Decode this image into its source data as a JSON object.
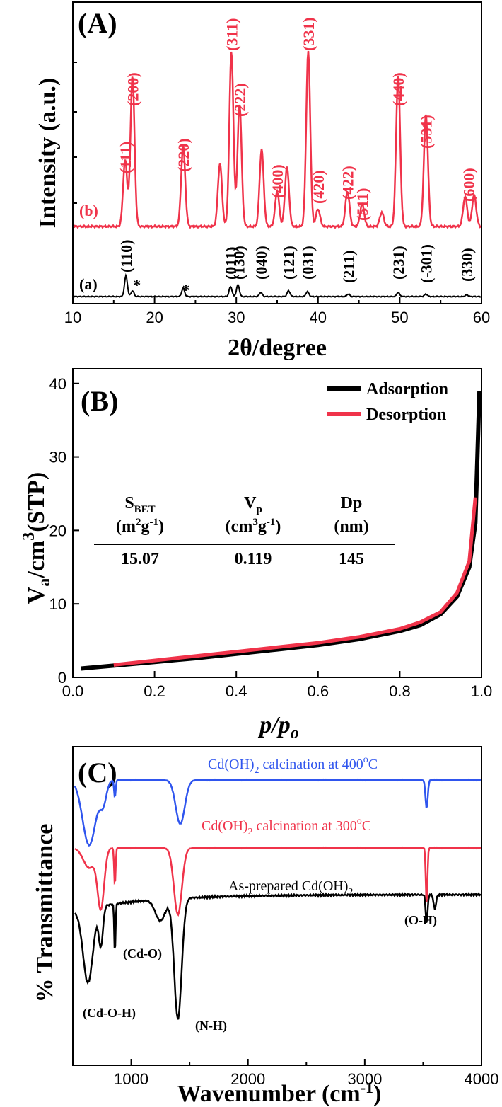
{
  "colors": {
    "red": "#f0334a",
    "black": "#000000",
    "blue": "#2f55ee"
  },
  "chart_data": [
    {
      "type": "line",
      "panel_label": "(A)",
      "xlabel": "2θ/degree",
      "ylabel": "Intensity (a.u.)",
      "xlim": [
        10,
        60
      ],
      "xticks": [
        "10",
        "20",
        "30",
        "40",
        "50",
        "60"
      ],
      "series": [
        {
          "name": "(b)",
          "color": "#f0334a",
          "peaks": [
            [
              16.4,
              0.38
            ],
            [
              17.3,
              0.86
            ],
            [
              23.5,
              0.46
            ],
            [
              28.0,
              0.36
            ],
            [
              29.4,
              1.0
            ],
            [
              30.4,
              0.7
            ],
            [
              33.1,
              0.44
            ],
            [
              35.0,
              0.2
            ],
            [
              36.2,
              0.34
            ],
            [
              38.8,
              1.0
            ],
            [
              40.0,
              0.1
            ],
            [
              43.6,
              0.2
            ],
            [
              45.4,
              0.13
            ],
            [
              47.8,
              0.08
            ],
            [
              49.8,
              0.86
            ],
            [
              53.2,
              0.64
            ],
            [
              58.0,
              0.17
            ],
            [
              59.1,
              0.18
            ]
          ],
          "hkl": [
            {
              "label": "(111)",
              "x": 16.4
            },
            {
              "label": "(200)",
              "x": 17.3
            },
            {
              "label": "(220)",
              "x": 23.5
            },
            {
              "label": "(311)",
              "x": 29.4
            },
            {
              "label": "(222)",
              "x": 30.4
            },
            {
              "label": "(400)",
              "x": 35.0
            },
            {
              "label": "(331)",
              "x": 38.8
            },
            {
              "label": "(420)",
              "x": 40.0
            },
            {
              "label": "(422)",
              "x": 43.6
            },
            {
              "label": "(511)",
              "x": 45.4
            },
            {
              "label": "(440)",
              "x": 49.8
            },
            {
              "label": "(531)",
              "x": 53.2
            },
            {
              "label": "(600)",
              "x": 58.4
            }
          ]
        },
        {
          "name": "(a)",
          "color": "#000000",
          "peaks": [
            [
              16.5,
              0.25
            ],
            [
              17.3,
              0.07
            ],
            [
              23.5,
              0.1
            ],
            [
              29.3,
              0.12
            ],
            [
              30.2,
              0.14
            ],
            [
              33.0,
              0.05
            ],
            [
              36.4,
              0.07
            ],
            [
              38.7,
              0.06
            ],
            [
              43.7,
              0.03
            ],
            [
              49.8,
              0.05
            ],
            [
              53.2,
              0.03
            ],
            [
              58.2,
              0.02
            ]
          ],
          "hkl": [
            {
              "label": "(110)",
              "x": 16.5
            },
            {
              "label": "(011)",
              "x": 29.3
            },
            {
              "label": "(130)",
              "x": 30.3
            },
            {
              "label": "(040)",
              "x": 33.0
            },
            {
              "label": "(121)",
              "x": 36.4
            },
            {
              "label": "(031)",
              "x": 38.7
            },
            {
              "label": "(211)",
              "x": 43.7
            },
            {
              "label": "(231)",
              "x": 49.8
            },
            {
              "label": "(-301)",
              "x": 53.2
            },
            {
              "label": "(330)",
              "x": 58.2
            }
          ],
          "stars": [
            {
              "label": "*",
              "x": 17.5
            },
            {
              "label": "*",
              "x": 23.5
            }
          ]
        }
      ]
    },
    {
      "type": "line",
      "panel_label": "(B)",
      "xlabel": "p/p",
      "xlabel_sub": "o",
      "ylabel": "V",
      "ylabel_sub": "a",
      "ylabel_rest": "/cm",
      "ylabel_sup": "3",
      "ylabel_end": "(STP)",
      "xlim": [
        0.0,
        1.0
      ],
      "ylim": [
        0,
        42
      ],
      "xticks": [
        "0.0",
        "0.2",
        "0.4",
        "0.6",
        "0.8",
        "1.0"
      ],
      "yticks": [
        "0",
        "10",
        "20",
        "30",
        "40"
      ],
      "legend": [
        "Adsorption",
        "Desorption"
      ],
      "legend_position": "top-right",
      "series": [
        {
          "name": "Adsorption",
          "color": "#000000",
          "x": [
            0.02,
            0.1,
            0.2,
            0.3,
            0.4,
            0.5,
            0.6,
            0.7,
            0.8,
            0.85,
            0.9,
            0.94,
            0.97,
            0.985,
            0.99,
            0.995
          ],
          "y": [
            1.2,
            1.6,
            2.1,
            2.6,
            3.2,
            3.8,
            4.4,
            5.2,
            6.3,
            7.1,
            8.6,
            11.0,
            15.0,
            21.0,
            30.0,
            39.0
          ]
        },
        {
          "name": "Desorption",
          "color": "#f0334a",
          "x": [
            0.1,
            0.2,
            0.3,
            0.4,
            0.5,
            0.6,
            0.7,
            0.8,
            0.85,
            0.9,
            0.94,
            0.97,
            0.985
          ],
          "y": [
            1.7,
            2.3,
            2.9,
            3.5,
            4.1,
            4.7,
            5.5,
            6.6,
            7.5,
            8.9,
            11.5,
            15.8,
            24.5
          ]
        }
      ],
      "table": {
        "headers": [
          {
            "main": "S",
            "sub": "BET",
            "unit_a": "(m",
            "unit_sup1": "2",
            "unit_b": "g",
            "unit_sup2": "-1",
            "unit_c": ")"
          },
          {
            "main": "V",
            "sub": "p",
            "unit_a": "(cm",
            "unit_sup1": "3",
            "unit_b": "g",
            "unit_sup2": "-1",
            "unit_c": ")"
          },
          {
            "main": "Dp",
            "sub": "",
            "unit_a": "(nm)",
            "unit_sup1": "",
            "unit_b": "",
            "unit_sup2": "",
            "unit_c": ""
          }
        ],
        "values": [
          "15.07",
          "0.119",
          "145"
        ]
      }
    },
    {
      "type": "line",
      "panel_label": "(C)",
      "xlabel": "Wavenumber (cm",
      "xlabel_sup": "-1",
      "xlabel_end": ")",
      "ylabel": "% Transmittance",
      "xlim": [
        500,
        4000
      ],
      "xticks": [
        "1000",
        "2000",
        "3000",
        "4000"
      ],
      "series": [
        {
          "name": "Cd(OH)",
          "sub": "2",
          "rest": " calcination at 400",
          "sup": "o",
          "end": "C",
          "color": "#2f55ee"
        },
        {
          "name": "Cd(OH)",
          "sub": "2",
          "rest": " calcination at 300",
          "sup": "o",
          "end": "C",
          "color": "#f0334a"
        },
        {
          "name": "As-prepared Cd(OH)",
          "sub": "2",
          "rest": "",
          "sup": "",
          "end": "",
          "color": "#000000"
        }
      ],
      "annotations": [
        "(Cd-O-H)",
        "(Cd-O)",
        "(N-H)",
        "(O-H)"
      ]
    }
  ]
}
